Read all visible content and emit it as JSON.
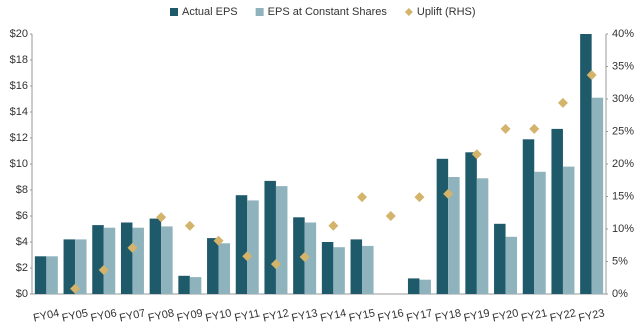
{
  "chart_data": {
    "type": "bar",
    "categories": [
      "FY04",
      "FY05",
      "FY06",
      "FY07",
      "FY08",
      "FY09",
      "FY10",
      "FY11",
      "FY12",
      "FY13",
      "FY14",
      "FY15",
      "FY16",
      "FY17",
      "FY18",
      "FY19",
      "FY20",
      "FY21",
      "FY22",
      "FY23"
    ],
    "series": [
      {
        "name": "Actual EPS",
        "color": "#1f5a6b",
        "values": [
          2.9,
          4.2,
          5.3,
          5.5,
          5.8,
          1.4,
          4.3,
          7.6,
          8.7,
          5.9,
          4.0,
          4.2,
          null,
          1.2,
          10.4,
          10.9,
          5.4,
          11.9,
          12.7,
          20.0
        ]
      },
      {
        "name": "EPS at Constant Shares",
        "color": "#8fb3bd",
        "values": [
          2.9,
          4.2,
          5.1,
          5.1,
          5.2,
          1.3,
          3.9,
          7.2,
          8.3,
          5.5,
          3.6,
          3.7,
          null,
          1.1,
          9.0,
          8.9,
          4.4,
          9.4,
          9.8,
          15.1
        ]
      },
      {
        "name": "Uplift (RHS)",
        "color": "#d4b36a",
        "axis": "y2",
        "marker": "diamond",
        "values": [
          null,
          0.8,
          3.7,
          7.1,
          11.8,
          10.5,
          8.2,
          5.8,
          4.6,
          5.7,
          10.5,
          14.9,
          12.0,
          14.9,
          15.4,
          21.5,
          25.4,
          25.4,
          29.4,
          33.7
        ]
      }
    ],
    "ylim": [
      0,
      20
    ],
    "yticks": [
      {
        "value": 0,
        "label": "$0"
      },
      {
        "value": 2,
        "label": "$2"
      },
      {
        "value": 4,
        "label": "$4"
      },
      {
        "value": 6,
        "label": "$6"
      },
      {
        "value": 8,
        "label": "$8"
      },
      {
        "value": 10,
        "label": "$10"
      },
      {
        "value": 12,
        "label": "$12"
      },
      {
        "value": 14,
        "label": "$14"
      },
      {
        "value": 16,
        "label": "$16"
      },
      {
        "value": 18,
        "label": "$18"
      },
      {
        "value": 20,
        "label": "$20"
      }
    ],
    "y2lim": [
      0,
      40
    ],
    "y2ticks": [
      {
        "value": 0,
        "label": "0%"
      },
      {
        "value": 5,
        "label": "5%"
      },
      {
        "value": 10,
        "label": "10%"
      },
      {
        "value": 15,
        "label": "15%"
      },
      {
        "value": 20,
        "label": "20%"
      },
      {
        "value": 25,
        "label": "25%"
      },
      {
        "value": 30,
        "label": "30%"
      },
      {
        "value": 35,
        "label": "35%"
      },
      {
        "value": 40,
        "label": "40%"
      }
    ],
    "legend": "top"
  }
}
